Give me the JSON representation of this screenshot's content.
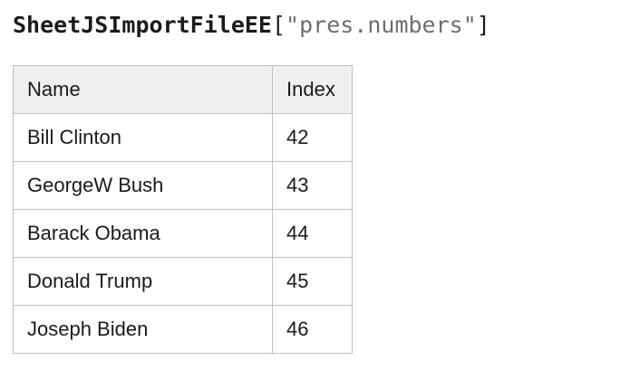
{
  "title": {
    "function_name": "SheetJSImportFileEE",
    "bracket_open": "[",
    "argument": "\"pres.numbers\"",
    "bracket_close": "]"
  },
  "table": {
    "columns": [
      "Name",
      "Index"
    ],
    "rows": [
      {
        "name": "Bill Clinton",
        "index": "42"
      },
      {
        "name": "GeorgeW Bush",
        "index": "43"
      },
      {
        "name": "Barack Obama",
        "index": "44"
      },
      {
        "name": "Donald Trump",
        "index": "45"
      },
      {
        "name": "Joseph Biden",
        "index": "46"
      }
    ]
  },
  "colors": {
    "header_bg": "#efefef",
    "border": "#c0c0c0",
    "text": "#1b1b1b",
    "string_gray": "#6e6e6e",
    "bracket": "#1b1b1b"
  }
}
